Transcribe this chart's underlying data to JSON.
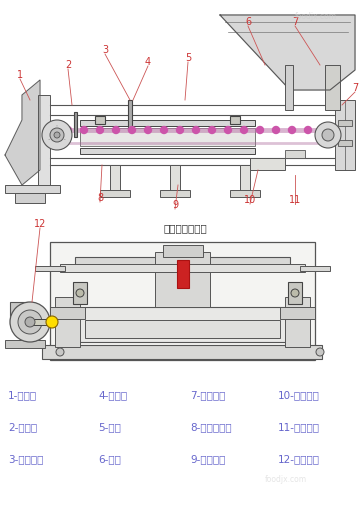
{
  "bg_color": "#ffffff",
  "title_note": "（折去卸料罩）",
  "watermark1": "foodjx.com",
  "watermark2": "foodjx.com",
  "label_color_top": "#cc3333",
  "label_color_bottom": "#6666cc",
  "line_color": "#555555",
  "diagram_color": "#888888",
  "legend_items": [
    [
      "1-卸料罩",
      "4-挡料板",
      "7-张紧装置",
      "10-纠偏装置"
    ],
    [
      "2-标定棒",
      "5-称体",
      "8-称重传感器",
      "11-清扫装置"
    ],
    [
      "3-称量框架",
      "6-料斗",
      "9-环型皮带",
      "12-传动装置"
    ]
  ],
  "legend_fontsize": 7.5,
  "note_fontsize": 7.5,
  "label_fontsize": 7.0
}
